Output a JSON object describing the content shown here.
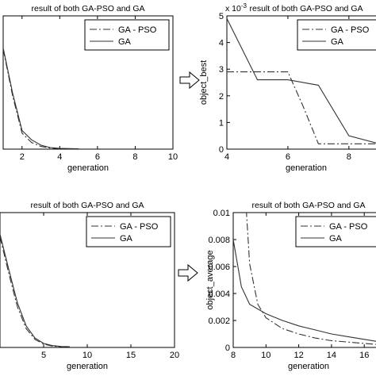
{
  "arrow_label": "",
  "chart_data": [
    {
      "id": "p1",
      "type": "line",
      "title": "result of both GA-PSO and GA",
      "xlabel": "generation",
      "ylabel": "",
      "xlim": [
        1,
        10
      ],
      "ylim": [
        0,
        1
      ],
      "xticks": [
        "2",
        "4",
        "6",
        "8",
        "10"
      ],
      "xtick_values": [
        2,
        4,
        6,
        8,
        10
      ],
      "yticks": [],
      "exponent_label": "",
      "legend": {
        "placement": "top-right",
        "entries": [
          "GA - PSO",
          "GA"
        ]
      },
      "series": [
        {
          "name": "GA - PSO",
          "style": "dashdot",
          "x": [
            1,
            1.5,
            2,
            2.5,
            3,
            3.5,
            4,
            4.5,
            5
          ],
          "y": [
            0.75,
            0.4,
            0.12,
            0.05,
            0.02,
            0.008,
            0.004,
            0.003,
            0.003
          ]
        },
        {
          "name": "GA",
          "style": "solid",
          "x": [
            1,
            1.5,
            2,
            2.5,
            3,
            3.5,
            4,
            4.5,
            5
          ],
          "y": [
            0.76,
            0.42,
            0.14,
            0.07,
            0.03,
            0.012,
            0.006,
            0.004,
            0.003
          ]
        }
      ]
    },
    {
      "id": "p2",
      "type": "line",
      "title": "result of both GA-PSO and GA",
      "xlabel": "generation",
      "ylabel": "object_best",
      "xlim": [
        4,
        9.2
      ],
      "ylim": [
        0,
        0.005
      ],
      "xticks": [
        "4",
        "6",
        "8"
      ],
      "xtick_values": [
        4,
        6,
        8
      ],
      "yticks": [
        "0",
        "1",
        "2",
        "3",
        "4",
        "5"
      ],
      "ytick_values": [
        0,
        0.001,
        0.002,
        0.003,
        0.004,
        0.005
      ],
      "exponent_label": "x 10",
      "exponent_power": "-3",
      "legend": {
        "placement": "top-right",
        "entries": [
          "GA - PSO",
          "GA"
        ]
      },
      "series": [
        {
          "name": "GA - PSO",
          "style": "dashdot",
          "x": [
            4,
            5,
            6,
            6.5,
            7,
            8,
            9.2
          ],
          "y": [
            0.0029,
            0.0029,
            0.0029,
            0.0016,
            0.0002,
            0.0002,
            0.0002
          ]
        },
        {
          "name": "GA",
          "style": "solid",
          "x": [
            4,
            5,
            6,
            7,
            8,
            9,
            9.2
          ],
          "y": [
            0.0049,
            0.0026,
            0.0026,
            0.0024,
            0.0005,
            0.0002,
            0.0002
          ]
        }
      ]
    },
    {
      "id": "p3",
      "type": "line",
      "title": "result of both GA-PSO and GA",
      "xlabel": "generation",
      "ylabel": "",
      "xlim": [
        0,
        20
      ],
      "ylim": [
        0,
        1
      ],
      "xticks": [
        "5",
        "10",
        "15",
        "20"
      ],
      "xtick_values": [
        5,
        10,
        15,
        20
      ],
      "yticks": [],
      "exponent_label": "",
      "legend": {
        "placement": "top-right",
        "entries": [
          "GA - PSO",
          "GA"
        ]
      },
      "series": [
        {
          "name": "GA - PSO",
          "style": "dashdot",
          "x": [
            0,
            1,
            2,
            3,
            4,
            5,
            6,
            7,
            8
          ],
          "y": [
            0.82,
            0.55,
            0.3,
            0.14,
            0.06,
            0.025,
            0.01,
            0.005,
            0.004
          ]
        },
        {
          "name": "GA",
          "style": "solid",
          "x": [
            0,
            1,
            2,
            3,
            4,
            5,
            6,
            7,
            8
          ],
          "y": [
            0.84,
            0.58,
            0.33,
            0.16,
            0.07,
            0.03,
            0.014,
            0.007,
            0.005
          ]
        }
      ]
    },
    {
      "id": "p4",
      "type": "line",
      "title": "result of both GA-PSO and GA",
      "xlabel": "generation",
      "ylabel": "object_average",
      "xlim": [
        8,
        17.2
      ],
      "ylim": [
        0,
        0.01
      ],
      "xticks": [
        "8",
        "10",
        "12",
        "14",
        "16"
      ],
      "xtick_values": [
        8,
        10,
        12,
        14,
        16
      ],
      "yticks": [
        "0",
        "0.002",
        "0.004",
        "0.006",
        "0.008",
        "0.01"
      ],
      "ytick_values": [
        0,
        0.002,
        0.004,
        0.006,
        0.008,
        0.01
      ],
      "exponent_label": "",
      "legend": {
        "placement": "top-right",
        "entries": [
          "GA - PSO",
          "GA"
        ]
      },
      "series": [
        {
          "name": "GA - PSO",
          "style": "dashdot",
          "x": [
            8.8,
            9,
            9.5,
            10,
            11,
            12,
            13,
            14,
            15,
            16,
            17,
            17.2
          ],
          "y": [
            0.0102,
            0.0062,
            0.0032,
            0.0022,
            0.0014,
            0.001,
            0.0007,
            0.0005,
            0.0004,
            0.0003,
            0.0002,
            0.0002
          ]
        },
        {
          "name": "GA",
          "style": "solid",
          "x": [
            8,
            8.5,
            9,
            10,
            11,
            12,
            13,
            14,
            15,
            16,
            17,
            17.2
          ],
          "y": [
            0.008,
            0.0045,
            0.0032,
            0.0025,
            0.002,
            0.0016,
            0.0013,
            0.001,
            0.0008,
            0.0006,
            0.0004,
            0.0003
          ]
        }
      ]
    }
  ]
}
